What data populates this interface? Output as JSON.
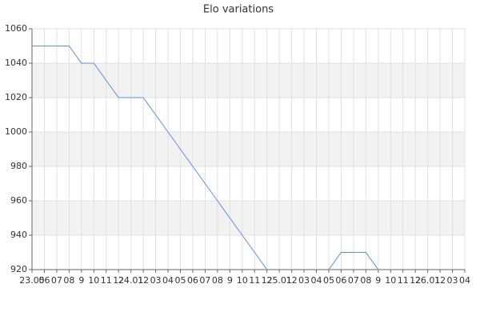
{
  "chart_data": {
    "type": "line",
    "title": "Elo variations",
    "categories": [
      "23.05",
      "06",
      "07",
      "08",
      "9",
      "10",
      "11",
      "12",
      "24.01",
      "12",
      "03",
      "04",
      "05",
      "06",
      "07",
      "08",
      "9",
      "10",
      "11",
      "12",
      "25.01",
      "12",
      "03",
      "04",
      "05",
      "06",
      "07",
      "08",
      "9",
      "10",
      "11",
      "12",
      "26.01",
      "12",
      "03",
      "04"
    ],
    "series": [
      {
        "name": "Elo",
        "color": "#5b8ee6",
        "values": [
          1050,
          1050,
          1050,
          1050,
          1040,
          1040,
          1030,
          1020,
          1020,
          1020,
          1010,
          1000,
          990,
          980,
          970,
          960,
          950,
          940,
          930,
          920,
          920,
          920,
          920,
          920,
          920,
          930,
          930,
          930,
          920,
          920,
          920,
          920,
          920,
          920,
          920,
          920
        ]
      }
    ],
    "ylim": [
      920,
      1060
    ],
    "yticks": [
      920,
      940,
      960,
      980,
      1000,
      1020,
      1040,
      1060
    ],
    "grid": true,
    "bands": true
  }
}
